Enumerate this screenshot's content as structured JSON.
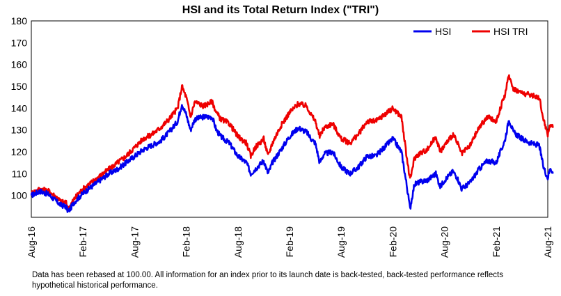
{
  "chart_data": {
    "type": "line",
    "title": "HSI and its Total Return Index (\"TRI\")",
    "xlabel": "",
    "ylabel": "",
    "ylim": [
      90,
      180
    ],
    "yticks": [
      100,
      110,
      120,
      130,
      140,
      150,
      160,
      170,
      180
    ],
    "x_tick_labels": [
      "Aug-16",
      "Feb-17",
      "Aug-17",
      "Feb-18",
      "Aug-18",
      "Feb-19",
      "Aug-19",
      "Feb-20",
      "Aug-20",
      "Feb-21",
      "Aug-21"
    ],
    "x_range_months": [
      0,
      60
    ],
    "legend_position": "top-right",
    "series": [
      {
        "name": "HSI",
        "color": "#0000ee",
        "points": [
          [
            0,
            100
          ],
          [
            1,
            102
          ],
          [
            2,
            100.5
          ],
          [
            3,
            97
          ],
          [
            3.5,
            95.5
          ],
          [
            4,
            95
          ],
          [
            4.3,
            92.5
          ],
          [
            5,
            97
          ],
          [
            5.5,
            99
          ],
          [
            6,
            101
          ],
          [
            7,
            104
          ],
          [
            8,
            107
          ],
          [
            9,
            110
          ],
          [
            10,
            112
          ],
          [
            11,
            115
          ],
          [
            12,
            118
          ],
          [
            13,
            121
          ],
          [
            14,
            123
          ],
          [
            15,
            125
          ],
          [
            16,
            129
          ],
          [
            17,
            134
          ],
          [
            17.5,
            142
          ],
          [
            18,
            137
          ],
          [
            18.5,
            130
          ],
          [
            19,
            135
          ],
          [
            20,
            136
          ],
          [
            21,
            136
          ],
          [
            21.5,
            130
          ],
          [
            22,
            127
          ],
          [
            23,
            124
          ],
          [
            24,
            118
          ],
          [
            25,
            115
          ],
          [
            25.5,
            110
          ],
          [
            26,
            112
          ],
          [
            27,
            116
          ],
          [
            27.5,
            110
          ],
          [
            28,
            115
          ],
          [
            29,
            121
          ],
          [
            30,
            127
          ],
          [
            31,
            131
          ],
          [
            32,
            129
          ],
          [
            32.5,
            126
          ],
          [
            33,
            124
          ],
          [
            33.5,
            115
          ],
          [
            34,
            119
          ],
          [
            35,
            120
          ],
          [
            36,
            113
          ],
          [
            37,
            110
          ],
          [
            38,
            113
          ],
          [
            39,
            118
          ],
          [
            40,
            118
          ],
          [
            41,
            122
          ],
          [
            42,
            126
          ],
          [
            43,
            120
          ],
          [
            43.6,
            105
          ],
          [
            44,
            94
          ],
          [
            44.5,
            105
          ],
          [
            45,
            106
          ],
          [
            46,
            107
          ],
          [
            47,
            110
          ],
          [
            47.5,
            104
          ],
          [
            48,
            107
          ],
          [
            49,
            111
          ],
          [
            49.5,
            108
          ],
          [
            50,
            103
          ],
          [
            51,
            106
          ],
          [
            52,
            112
          ],
          [
            53,
            116
          ],
          [
            54,
            115
          ],
          [
            55,
            125
          ],
          [
            55.5,
            135
          ],
          [
            56,
            129
          ],
          [
            57,
            126
          ],
          [
            58,
            124
          ],
          [
            59,
            123
          ],
          [
            59.5,
            113
          ],
          [
            60,
            108
          ],
          [
            60.3,
            113
          ],
          [
            60.6,
            110
          ]
        ]
      },
      {
        "name": "HSI TRI",
        "color": "#ee0000",
        "points": [
          [
            0,
            101
          ],
          [
            1,
            103
          ],
          [
            2,
            102
          ],
          [
            3,
            99
          ],
          [
            3.5,
            97
          ],
          [
            4,
            97
          ],
          [
            4.3,
            94
          ],
          [
            5,
            98.5
          ],
          [
            5.5,
            101
          ],
          [
            6,
            103
          ],
          [
            7,
            106
          ],
          [
            8,
            109
          ],
          [
            9,
            112
          ],
          [
            10,
            115
          ],
          [
            11,
            118
          ],
          [
            12,
            122
          ],
          [
            13,
            126
          ],
          [
            14,
            128
          ],
          [
            15,
            131
          ],
          [
            16,
            135
          ],
          [
            17,
            140
          ],
          [
            17.5,
            150
          ],
          [
            18,
            145
          ],
          [
            18.5,
            136
          ],
          [
            19,
            143
          ],
          [
            20,
            141
          ],
          [
            21,
            143
          ],
          [
            21.5,
            138
          ],
          [
            22,
            135
          ],
          [
            23,
            133
          ],
          [
            24,
            127
          ],
          [
            25,
            124
          ],
          [
            25.5,
            118
          ],
          [
            26,
            122
          ],
          [
            27,
            126
          ],
          [
            27.5,
            118
          ],
          [
            28,
            124
          ],
          [
            29,
            132
          ],
          [
            30,
            138
          ],
          [
            31,
            142
          ],
          [
            32,
            141
          ],
          [
            32.5,
            137
          ],
          [
            33,
            134
          ],
          [
            33.5,
            127
          ],
          [
            34,
            131
          ],
          [
            35,
            133
          ],
          [
            36,
            126
          ],
          [
            37,
            124
          ],
          [
            38,
            128
          ],
          [
            39,
            134
          ],
          [
            40,
            134
          ],
          [
            41,
            137
          ],
          [
            42,
            140
          ],
          [
            43,
            136
          ],
          [
            43.6,
            118
          ],
          [
            44,
            107
          ],
          [
            44.5,
            117
          ],
          [
            45,
            119
          ],
          [
            46,
            121
          ],
          [
            47,
            127
          ],
          [
            47.5,
            120
          ],
          [
            48,
            123
          ],
          [
            49,
            128
          ],
          [
            49.5,
            124
          ],
          [
            50,
            119
          ],
          [
            51,
            123
          ],
          [
            52,
            131
          ],
          [
            53,
            136
          ],
          [
            54,
            134
          ],
          [
            55,
            146
          ],
          [
            55.5,
            155
          ],
          [
            56,
            149
          ],
          [
            57,
            147
          ],
          [
            58,
            146
          ],
          [
            59,
            145
          ],
          [
            59.5,
            135
          ],
          [
            60,
            128
          ],
          [
            60.3,
            133
          ],
          [
            60.6,
            131
          ]
        ]
      }
    ]
  },
  "footnote": "Data has been rebased at 100.00. All information for an index prior to its launch date is back-tested, back-tested performance reflects hypothetical historical performance."
}
